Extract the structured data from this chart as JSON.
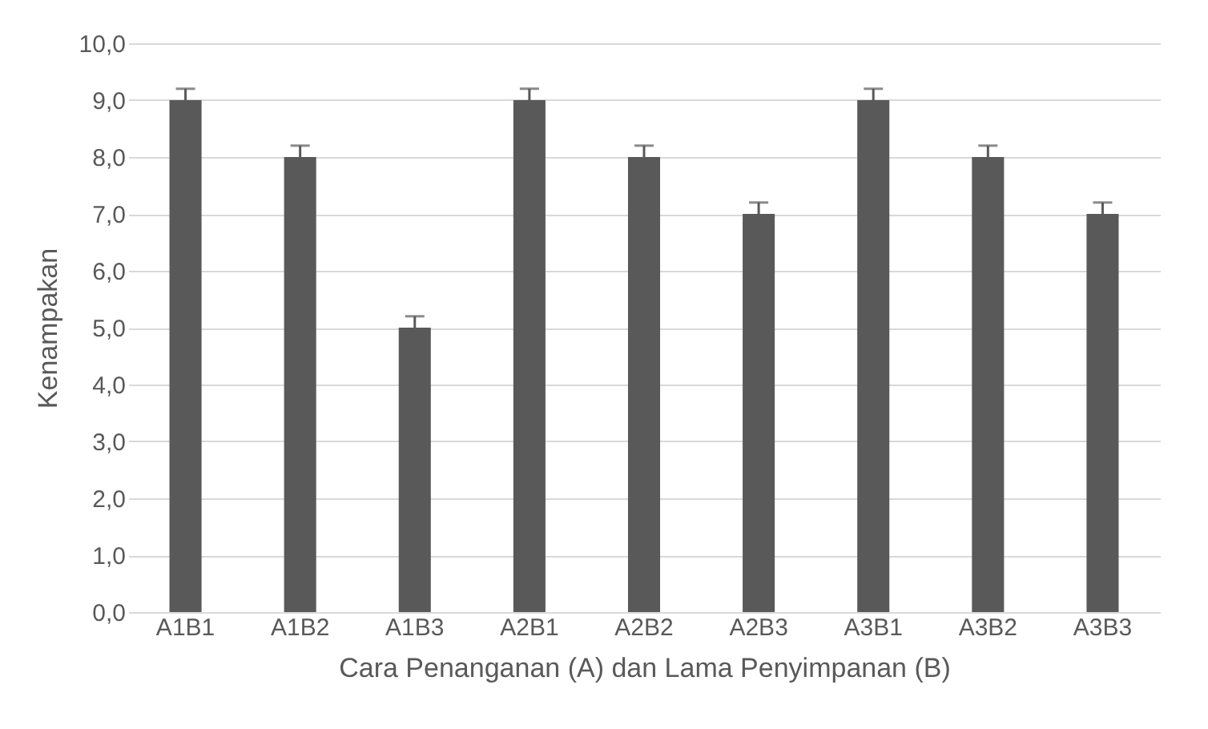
{
  "chart_data": {
    "type": "bar",
    "xlabel": "Cara Penanganan (A) dan Lama Penyimpanan (B)",
    "ylabel": "Kenampakan",
    "categories": [
      "A1B1",
      "A1B2",
      "A1B3",
      "A2B1",
      "A2B2",
      "A2B3",
      "A3B1",
      "A3B2",
      "A3B3"
    ],
    "values": [
      9.0,
      8.0,
      5.0,
      9.0,
      8.0,
      7.0,
      9.0,
      8.0,
      7.0
    ],
    "errors": [
      [
        9.0,
        9.2
      ],
      [
        8.0,
        8.2
      ],
      [
        5.0,
        5.2
      ],
      [
        9.0,
        9.2
      ],
      [
        8.0,
        8.2
      ],
      [
        7.0,
        7.2
      ],
      [
        9.0,
        9.2
      ],
      [
        8.0,
        8.2
      ],
      [
        7.0,
        7.2
      ]
    ],
    "color": "#595959",
    "ylim": [
      0,
      10
    ],
    "yticks": [
      {
        "value": 0,
        "label": "0,0"
      },
      {
        "value": 1,
        "label": "1,0"
      },
      {
        "value": 2,
        "label": "2,0"
      },
      {
        "value": 3,
        "label": "3,0"
      },
      {
        "value": 4,
        "label": "4,0"
      },
      {
        "value": 5,
        "label": "5,0"
      },
      {
        "value": 6,
        "label": "6,0"
      },
      {
        "value": 7,
        "label": "7,0"
      },
      {
        "value": 8,
        "label": "8,0"
      },
      {
        "value": 9,
        "label": "9,0"
      },
      {
        "value": 10,
        "label": "10,0"
      }
    ],
    "grid": "y"
  }
}
